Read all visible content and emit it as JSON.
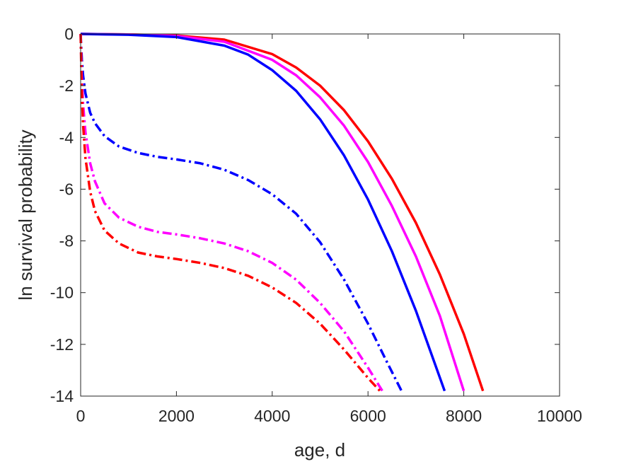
{
  "chart_data": {
    "type": "line",
    "title": "",
    "xlabel": "age, d",
    "ylabel": "ln survival probability",
    "xlim": [
      0,
      10000
    ],
    "ylim": [
      -14,
      0
    ],
    "x_ticks": [
      0,
      2000,
      4000,
      6000,
      8000,
      10000
    ],
    "y_ticks": [
      0,
      -2,
      -4,
      -6,
      -8,
      -10,
      -12,
      -14
    ],
    "x_tick_labels": [
      "0",
      "2000",
      "4000",
      "6000",
      "8000",
      "10000"
    ],
    "y_tick_labels": [
      "0",
      "-2",
      "-4",
      "-6",
      "-8",
      "-10",
      "-12",
      "-14"
    ],
    "box": true,
    "grid": false,
    "series": [
      {
        "color": "#ff0000",
        "style": "solid",
        "points": [
          [
            0,
            0
          ],
          [
            1000,
            -0.02
          ],
          [
            2000,
            -0.06
          ],
          [
            3000,
            -0.22
          ],
          [
            4000,
            -0.78
          ],
          [
            4500,
            -1.3
          ],
          [
            5000,
            -2.0
          ],
          [
            5500,
            -2.95
          ],
          [
            6000,
            -4.15
          ],
          [
            6500,
            -5.6
          ],
          [
            7000,
            -7.3
          ],
          [
            7500,
            -9.3
          ],
          [
            8000,
            -11.6
          ],
          [
            8400,
            -13.8
          ]
        ]
      },
      {
        "color": "#ff00ff",
        "style": "solid",
        "points": [
          [
            0,
            0
          ],
          [
            1000,
            -0.02
          ],
          [
            2000,
            -0.08
          ],
          [
            3000,
            -0.3
          ],
          [
            4000,
            -1.0
          ],
          [
            4500,
            -1.6
          ],
          [
            5000,
            -2.45
          ],
          [
            5500,
            -3.55
          ],
          [
            6000,
            -4.95
          ],
          [
            6500,
            -6.65
          ],
          [
            7000,
            -8.6
          ],
          [
            7500,
            -10.9
          ],
          [
            8000,
            -13.8
          ]
        ]
      },
      {
        "color": "#0000ff",
        "style": "solid",
        "points": [
          [
            0,
            0
          ],
          [
            1000,
            -0.03
          ],
          [
            2000,
            -0.12
          ],
          [
            3000,
            -0.45
          ],
          [
            3500,
            -0.8
          ],
          [
            4000,
            -1.4
          ],
          [
            4500,
            -2.2
          ],
          [
            5000,
            -3.3
          ],
          [
            5500,
            -4.7
          ],
          [
            6000,
            -6.4
          ],
          [
            6500,
            -8.4
          ],
          [
            7000,
            -10.7
          ],
          [
            7600,
            -13.8
          ]
        ]
      },
      {
        "color": "#0000ff",
        "style": "dashdot",
        "points": [
          [
            0,
            0
          ],
          [
            25,
            -1.0
          ],
          [
            50,
            -1.6
          ],
          [
            100,
            -2.3
          ],
          [
            200,
            -3.05
          ],
          [
            300,
            -3.45
          ],
          [
            500,
            -3.95
          ],
          [
            800,
            -4.35
          ],
          [
            1200,
            -4.6
          ],
          [
            1600,
            -4.75
          ],
          [
            2000,
            -4.85
          ],
          [
            2500,
            -5.0
          ],
          [
            3000,
            -5.25
          ],
          [
            3500,
            -5.65
          ],
          [
            4000,
            -6.2
          ],
          [
            4500,
            -6.95
          ],
          [
            5000,
            -8.05
          ],
          [
            5500,
            -9.5
          ],
          [
            6000,
            -11.2
          ],
          [
            6400,
            -12.7
          ],
          [
            6700,
            -13.8
          ]
        ]
      },
      {
        "color": "#ff00ff",
        "style": "dashdot",
        "points": [
          [
            0,
            0
          ],
          [
            20,
            -1.5
          ],
          [
            50,
            -2.7
          ],
          [
            100,
            -3.8
          ],
          [
            200,
            -5.0
          ],
          [
            300,
            -5.7
          ],
          [
            500,
            -6.55
          ],
          [
            800,
            -7.1
          ],
          [
            1200,
            -7.45
          ],
          [
            1600,
            -7.65
          ],
          [
            2000,
            -7.75
          ],
          [
            2500,
            -7.9
          ],
          [
            3000,
            -8.1
          ],
          [
            3500,
            -8.4
          ],
          [
            4000,
            -8.85
          ],
          [
            4500,
            -9.5
          ],
          [
            5000,
            -10.4
          ],
          [
            5500,
            -11.5
          ],
          [
            6000,
            -12.9
          ],
          [
            6300,
            -13.8
          ]
        ]
      },
      {
        "color": "#ff0000",
        "style": "dashdot",
        "points": [
          [
            0,
            0
          ],
          [
            20,
            -2.0
          ],
          [
            50,
            -3.5
          ],
          [
            100,
            -4.8
          ],
          [
            200,
            -6.1
          ],
          [
            300,
            -6.85
          ],
          [
            500,
            -7.6
          ],
          [
            800,
            -8.1
          ],
          [
            1200,
            -8.45
          ],
          [
            1600,
            -8.6
          ],
          [
            2000,
            -8.7
          ],
          [
            2500,
            -8.85
          ],
          [
            3000,
            -9.05
          ],
          [
            3500,
            -9.35
          ],
          [
            4000,
            -9.8
          ],
          [
            4500,
            -10.4
          ],
          [
            5000,
            -11.2
          ],
          [
            5500,
            -12.2
          ],
          [
            6000,
            -13.3
          ],
          [
            6250,
            -13.8
          ]
        ]
      }
    ]
  }
}
